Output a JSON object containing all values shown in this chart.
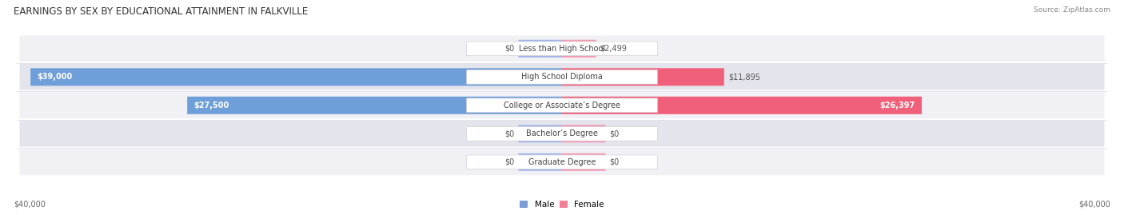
{
  "title": "EARNINGS BY SEX BY EDUCATIONAL ATTAINMENT IN FALKVILLE",
  "source": "Source: ZipAtlas.com",
  "categories": [
    "Less than High School",
    "High School Diploma",
    "College or Associate’s Degree",
    "Bachelor’s Degree",
    "Graduate Degree"
  ],
  "male_values": [
    0,
    39000,
    27500,
    0,
    0
  ],
  "female_values": [
    2499,
    11895,
    26397,
    0,
    0
  ],
  "male_labels": [
    "$0",
    "$39,000",
    "$27,500",
    "$0",
    "$0"
  ],
  "female_labels": [
    "$2,499",
    "$11,895",
    "$26,397",
    "$0",
    "$0"
  ],
  "male_color": "#a0b4e8",
  "female_color": "#f498b0",
  "male_color_large": "#6f9fd8",
  "female_color_large": "#f0607a",
  "row_bg_light": "#f0f0f5",
  "row_bg_dark": "#e4e4ec",
  "max_val": 40000,
  "title_fontsize": 8.5,
  "label_fontsize": 7,
  "axis_label": "$40,000",
  "background_color": "#ffffff",
  "legend_male_color": "#7b9dd6",
  "legend_female_color": "#f08098",
  "placeholder_bar_size": 3200,
  "label_color_inside": "#ffffff",
  "label_color_outside": "#555555"
}
